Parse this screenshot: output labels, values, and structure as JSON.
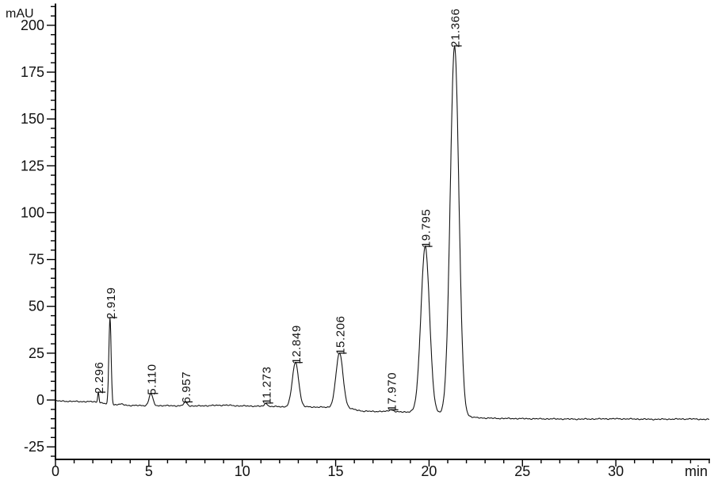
{
  "chart_data": {
    "type": "line",
    "subtype": "chromatogram",
    "title": "",
    "xlabel": "min",
    "ylabel": "mAU",
    "xlim": [
      0,
      35
    ],
    "ylim": [
      -31.7,
      211.6
    ],
    "grid": false,
    "legend": null,
    "x_axis": {
      "major_ticks": [
        0,
        5,
        10,
        15,
        20,
        25,
        30
      ],
      "minor_step": 1,
      "minor_min": 0,
      "minor_max": 35
    },
    "y_axis": {
      "major_ticks": [
        -25,
        0,
        25,
        50,
        75,
        100,
        125,
        150,
        175,
        200
      ],
      "minor_step": 5,
      "minor_min": -30,
      "minor_max": 210
    },
    "colors": {
      "trace": "#141414",
      "axis": "#000000",
      "text": "#111111",
      "background": "#ffffff"
    },
    "peaks": [
      {
        "rt": 2.296,
        "label": "2.296",
        "apex_mau": 4.2,
        "sigma_min": 0.035
      },
      {
        "rt": 2.919,
        "label": "2.919",
        "apex_mau": 44.0,
        "sigma_min": 0.06
      },
      {
        "rt": 5.11,
        "label": "5.110",
        "apex_mau": 3.5,
        "sigma_min": 0.1
      },
      {
        "rt": 6.957,
        "label": "6.957",
        "apex_mau": -1.0,
        "sigma_min": 0.09
      },
      {
        "rt": 11.273,
        "label": "11.273",
        "apex_mau": -1.6,
        "sigma_min": 0.07
      },
      {
        "rt": 12.849,
        "label": "12.849",
        "apex_mau": 20.0,
        "sigma_min": 0.17
      },
      {
        "rt": 15.206,
        "label": "15.206",
        "apex_mau": 25.0,
        "sigma_min": 0.19
      },
      {
        "rt": 17.97,
        "label": "17.970",
        "apex_mau": -5.2,
        "sigma_min": 0.13
      },
      {
        "rt": 19.795,
        "label": "19.795",
        "apex_mau": 82.0,
        "sigma_min": 0.23
      },
      {
        "rt": 21.366,
        "label": "21.366",
        "apex_mau": 189.0,
        "sigma_min": 0.23
      }
    ],
    "baseline_mau": [
      [
        0,
        -0.5
      ],
      [
        1.2,
        -0.8
      ],
      [
        2.05,
        -0.9
      ],
      [
        2.5,
        -1.6
      ],
      [
        2.8,
        -2.4
      ],
      [
        3.15,
        -2.6
      ],
      [
        3.5,
        -2.2
      ],
      [
        3.9,
        -2.9
      ],
      [
        5.7,
        -3.0
      ],
      [
        7.6,
        -3.2
      ],
      [
        8.5,
        -2.9
      ],
      [
        9.1,
        -2.7
      ],
      [
        9.7,
        -3.1
      ],
      [
        10.9,
        -3.3
      ],
      [
        12.2,
        -3.6
      ],
      [
        13.7,
        -3.7
      ],
      [
        14.5,
        -3.9
      ],
      [
        15.8,
        -4.7
      ],
      [
        16.5,
        -6.0
      ],
      [
        17.4,
        -6.1
      ],
      [
        18.4,
        -6.4
      ],
      [
        19.1,
        -6.3
      ],
      [
        20.6,
        -7.1
      ],
      [
        21.0,
        -7.4
      ],
      [
        22.0,
        -8.7
      ],
      [
        22.6,
        -9.5
      ],
      [
        23.6,
        -9.8
      ],
      [
        25.5,
        -10.0
      ],
      [
        28,
        -10.2
      ],
      [
        30,
        -10.0
      ],
      [
        32,
        -10.3
      ],
      [
        34,
        -10.1
      ],
      [
        35,
        -10.4
      ]
    ]
  }
}
